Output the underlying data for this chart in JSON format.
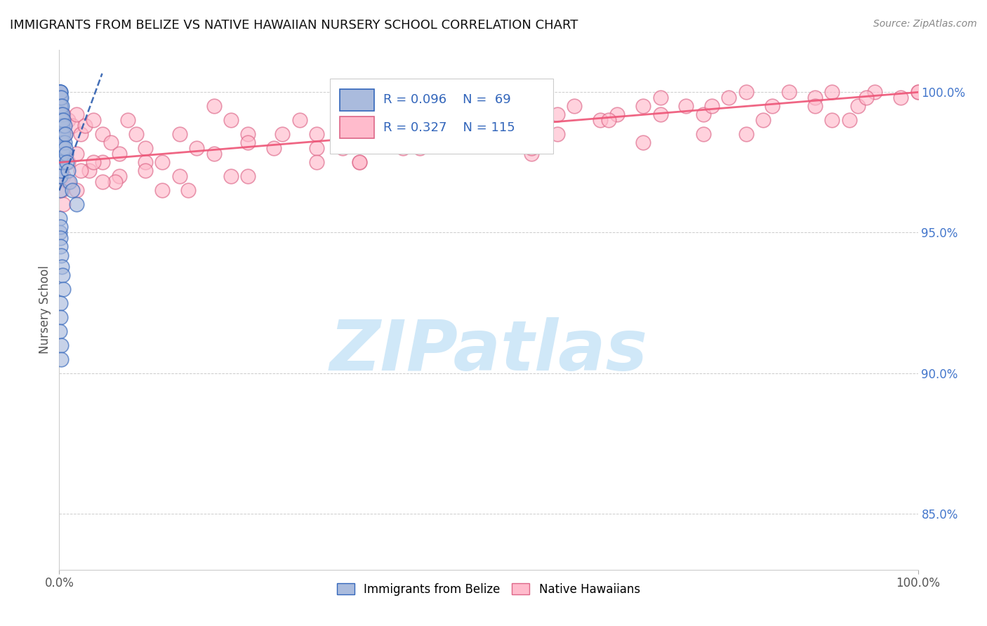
{
  "title": "IMMIGRANTS FROM BELIZE VS NATIVE HAWAIIAN NURSERY SCHOOL CORRELATION CHART",
  "source": "Source: ZipAtlas.com",
  "ylabel": "Nursery School",
  "right_yticks": [
    85.0,
    90.0,
    95.0,
    100.0
  ],
  "blue_color": "#AABBDD",
  "blue_edge_color": "#3366BB",
  "pink_color": "#FFBBCC",
  "pink_edge_color": "#DD6688",
  "blue_line_color": "#2255AA",
  "pink_line_color": "#EE5577",
  "watermark_color": "#D0E8F8",
  "belize_x": [
    0.05,
    0.05,
    0.05,
    0.05,
    0.05,
    0.05,
    0.05,
    0.05,
    0.05,
    0.05,
    0.1,
    0.1,
    0.1,
    0.1,
    0.1,
    0.1,
    0.1,
    0.1,
    0.1,
    0.1,
    0.15,
    0.15,
    0.15,
    0.15,
    0.15,
    0.15,
    0.15,
    0.2,
    0.2,
    0.2,
    0.2,
    0.2,
    0.2,
    0.3,
    0.3,
    0.3,
    0.3,
    0.3,
    0.4,
    0.4,
    0.4,
    0.4,
    0.5,
    0.5,
    0.5,
    0.6,
    0.6,
    0.7,
    0.7,
    0.8,
    0.9,
    1.0,
    1.2,
    1.5,
    2.0,
    0.05,
    0.05,
    0.1,
    0.1,
    0.15,
    0.2,
    0.3,
    0.4,
    0.5,
    0.1,
    0.15,
    0.05,
    0.2,
    0.25
  ],
  "belize_y": [
    100.0,
    100.0,
    99.8,
    99.5,
    99.2,
    99.0,
    98.8,
    98.5,
    98.2,
    97.8,
    100.0,
    99.8,
    99.5,
    99.2,
    98.8,
    98.5,
    98.0,
    97.5,
    97.0,
    96.5,
    100.0,
    99.5,
    99.0,
    98.5,
    98.0,
    97.5,
    97.0,
    99.8,
    99.2,
    98.8,
    98.2,
    97.8,
    97.2,
    99.5,
    99.0,
    98.5,
    98.0,
    97.5,
    99.2,
    98.8,
    98.2,
    97.8,
    99.0,
    98.5,
    98.0,
    98.8,
    98.2,
    98.5,
    98.0,
    97.8,
    97.5,
    97.2,
    96.8,
    96.5,
    96.0,
    95.5,
    95.0,
    95.2,
    94.8,
    94.5,
    94.2,
    93.8,
    93.5,
    93.0,
    92.5,
    92.0,
    91.5,
    91.0,
    90.5
  ],
  "hawaiian_x": [
    0.1,
    0.2,
    0.3,
    0.5,
    0.7,
    1.0,
    1.5,
    2.0,
    2.5,
    3.0,
    4.0,
    5.0,
    6.0,
    7.0,
    8.0,
    9.0,
    10.0,
    12.0,
    14.0,
    16.0,
    18.0,
    20.0,
    22.0,
    25.0,
    28.0,
    30.0,
    33.0,
    35.0,
    38.0,
    40.0,
    43.0,
    45.0,
    48.0,
    50.0,
    53.0,
    55.0,
    58.0,
    60.0,
    63.0,
    65.0,
    68.0,
    70.0,
    73.0,
    75.0,
    78.0,
    80.0,
    83.0,
    85.0,
    88.0,
    90.0,
    93.0,
    95.0,
    98.0,
    100.0,
    0.2,
    0.5,
    1.0,
    2.0,
    3.5,
    5.0,
    7.0,
    10.0,
    14.0,
    18.0,
    22.0,
    26.0,
    30.0,
    35.0,
    40.0,
    46.0,
    52.0,
    58.0,
    64.0,
    70.0,
    76.0,
    82.0,
    88.0,
    94.0,
    100.0,
    0.3,
    1.0,
    2.5,
    4.0,
    6.5,
    10.0,
    15.0,
    22.0,
    30.0,
    42.0,
    55.0,
    68.0,
    80.0,
    92.0,
    0.5,
    2.0,
    5.0,
    12.0,
    20.0,
    35.0,
    55.0,
    75.0,
    90.0
  ],
  "hawaiian_y": [
    98.5,
    98.2,
    98.8,
    99.2,
    98.5,
    99.0,
    98.8,
    99.2,
    98.5,
    98.8,
    99.0,
    98.5,
    98.2,
    97.8,
    99.0,
    98.5,
    98.0,
    97.5,
    98.5,
    98.0,
    99.5,
    99.0,
    98.5,
    98.0,
    99.0,
    98.5,
    98.0,
    98.8,
    99.2,
    98.8,
    99.0,
    98.5,
    99.2,
    99.5,
    99.0,
    98.5,
    99.2,
    99.5,
    99.0,
    99.2,
    99.5,
    99.8,
    99.5,
    99.2,
    99.8,
    100.0,
    99.5,
    100.0,
    99.8,
    100.0,
    99.5,
    100.0,
    99.8,
    100.0,
    97.5,
    97.0,
    97.5,
    97.8,
    97.2,
    97.5,
    97.0,
    97.5,
    97.0,
    97.8,
    98.2,
    98.5,
    98.0,
    97.5,
    98.0,
    98.5,
    99.0,
    98.5,
    99.0,
    99.2,
    99.5,
    99.0,
    99.5,
    99.8,
    100.0,
    96.5,
    96.8,
    97.2,
    97.5,
    96.8,
    97.2,
    96.5,
    97.0,
    97.5,
    98.0,
    97.8,
    98.2,
    98.5,
    99.0,
    96.0,
    96.5,
    96.8,
    96.5,
    97.0,
    97.5,
    98.0,
    98.5,
    99.0
  ],
  "ylim_min": 83.0,
  "ylim_max": 101.5,
  "xlim_min": 0.0,
  "xlim_max": 100.0,
  "blue_trend_x0": 0.0,
  "blue_trend_y0": 96.5,
  "blue_trend_x1": 3.0,
  "blue_trend_y1": 99.0,
  "pink_trend_x0": 0.0,
  "pink_trend_y0": 97.5,
  "pink_trend_x1": 100.0,
  "pink_trend_y1": 100.0
}
